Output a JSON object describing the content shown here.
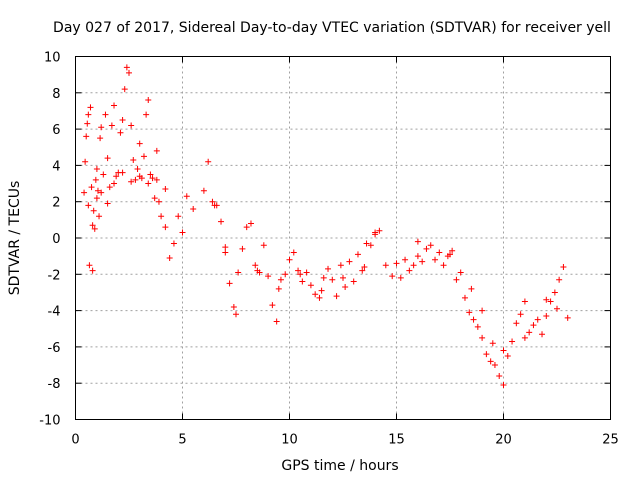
{
  "chart_data": {
    "type": "scatter",
    "title": "Day 027 of 2017, Sidereal Day-to-day VTEC variation (SDTVAR) for receiver yell",
    "xlabel": "GPS time / hours",
    "ylabel": "SDTVAR / TECUs",
    "xlim": [
      0,
      25
    ],
    "ylim": [
      -10,
      10
    ],
    "xticks": [
      0,
      5,
      10,
      15,
      20,
      25
    ],
    "yticks": [
      -10,
      -8,
      -6,
      -4,
      -2,
      0,
      2,
      4,
      6,
      8,
      10
    ],
    "grid": true,
    "marker": "+",
    "color": "#ff0000",
    "series": [
      {
        "name": "SDTVAR",
        "x": [
          0.4,
          0.45,
          0.5,
          0.55,
          0.6,
          0.65,
          0.7,
          0.75,
          0.8,
          0.85,
          0.9,
          0.95,
          1.0,
          1.05,
          1.1,
          1.15,
          1.2,
          1.3,
          1.4,
          1.5,
          1.6,
          1.7,
          1.8,
          1.9,
          2.0,
          2.1,
          2.2,
          2.3,
          2.4,
          2.5,
          2.6,
          2.7,
          2.8,
          2.9,
          3.0,
          3.1,
          3.2,
          3.3,
          3.4,
          3.5,
          3.6,
          3.7,
          3.8,
          3.9,
          4.0,
          4.2,
          4.4,
          4.6,
          4.8,
          5.0,
          5.2,
          5.5,
          6.0,
          6.2,
          6.4,
          6.6,
          6.8,
          7.0,
          7.2,
          7.4,
          7.6,
          7.8,
          8.0,
          8.2,
          8.4,
          8.6,
          8.8,
          9.0,
          9.2,
          9.4,
          9.6,
          9.8,
          10.0,
          10.2,
          10.4,
          10.6,
          10.8,
          11.0,
          11.2,
          11.4,
          11.6,
          11.8,
          12.0,
          12.2,
          12.4,
          12.6,
          12.8,
          13.0,
          13.2,
          13.4,
          13.6,
          13.8,
          14.0,
          14.2,
          14.5,
          14.8,
          15.0,
          15.2,
          15.4,
          15.6,
          15.8,
          16.0,
          16.2,
          16.4,
          16.6,
          16.8,
          17.0,
          17.2,
          17.4,
          17.6,
          17.8,
          18.0,
          18.2,
          18.4,
          18.6,
          18.8,
          19.0,
          19.2,
          19.4,
          19.6,
          19.8,
          20.0,
          20.2,
          20.4,
          20.6,
          20.8,
          21.0,
          21.2,
          21.4,
          21.6,
          21.8,
          22.0,
          22.2,
          22.4,
          22.6,
          22.8,
          0.6,
          0.8,
          1.0,
          1.2,
          1.5,
          1.8,
          2.2,
          2.6,
          3.0,
          3.4,
          3.8,
          4.2,
          6.5,
          7.0,
          7.5,
          8.5,
          9.5,
          10.5,
          11.5,
          12.5,
          13.5,
          14.0,
          16.0,
          17.5,
          18.5,
          19.0,
          19.5,
          20.0,
          21.0,
          22.0,
          22.5,
          23.0
        ],
        "y": [
          2.5,
          4.2,
          5.6,
          6.3,
          6.8,
          -1.5,
          7.2,
          2.8,
          -1.8,
          1.5,
          0.5,
          3.2,
          3.8,
          2.6,
          1.2,
          5.5,
          6.1,
          3.5,
          6.8,
          4.4,
          2.8,
          6.2,
          7.3,
          3.4,
          3.6,
          5.8,
          6.5,
          8.2,
          9.4,
          9.1,
          6.2,
          4.3,
          3.2,
          3.8,
          5.2,
          3.3,
          4.5,
          6.8,
          7.6,
          3.5,
          3.3,
          2.2,
          4.8,
          2.0,
          1.2,
          0.6,
          -1.1,
          -0.3,
          1.2,
          0.3,
          2.3,
          1.6,
          2.6,
          4.2,
          2.0,
          1.8,
          0.9,
          -0.5,
          -2.5,
          -3.8,
          -1.9,
          -0.6,
          0.6,
          0.8,
          -1.5,
          -1.9,
          -0.4,
          -2.1,
          -3.7,
          -4.6,
          -2.3,
          -2.0,
          -1.2,
          -0.8,
          -1.8,
          -2.4,
          -1.9,
          -2.6,
          -3.1,
          -3.3,
          -2.2,
          -1.7,
          -2.3,
          -3.2,
          -1.5,
          -2.7,
          -1.3,
          -2.4,
          -0.9,
          -1.8,
          -0.3,
          -0.4,
          0.2,
          0.4,
          -1.5,
          -2.1,
          -1.4,
          -2.2,
          -1.2,
          -1.8,
          -1.5,
          -1.0,
          -1.3,
          -0.6,
          -0.4,
          -1.2,
          -0.8,
          -1.5,
          -1.0,
          -0.7,
          -2.3,
          -1.9,
          -3.3,
          -4.1,
          -4.5,
          -4.9,
          -5.5,
          -6.4,
          -6.8,
          -7.0,
          -7.6,
          -8.1,
          -6.5,
          -5.7,
          -4.7,
          -4.2,
          -5.5,
          -5.2,
          -4.8,
          -4.5,
          -5.3,
          -4.3,
          -3.5,
          -3.0,
          -2.3,
          -1.6,
          1.8,
          0.7,
          2.2,
          2.5,
          1.9,
          3.0,
          3.6,
          3.1,
          3.4,
          3.0,
          3.2,
          2.7,
          1.8,
          -0.8,
          -4.2,
          -1.8,
          -2.8,
          -2.0,
          -2.9,
          -2.2,
          -1.6,
          0.3,
          -0.2,
          -0.9,
          -2.8,
          -4.0,
          -5.8,
          -6.2,
          -3.5,
          -3.4,
          -3.9,
          -4.4
        ]
      }
    ]
  }
}
